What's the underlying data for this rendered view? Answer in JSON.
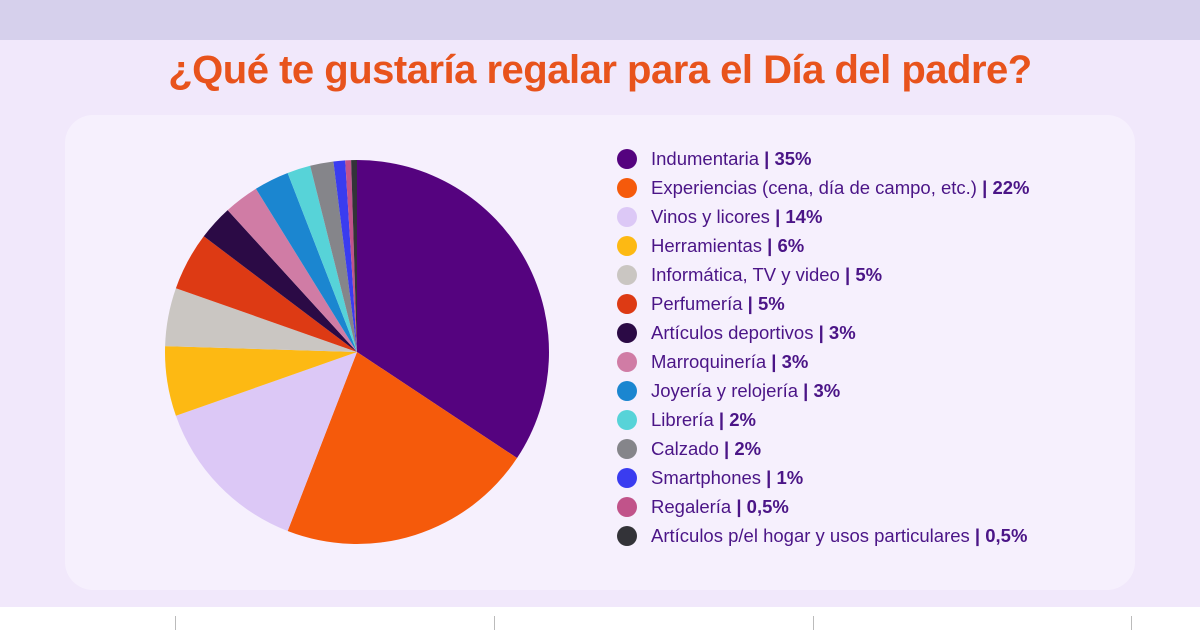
{
  "title": "¿Qué te gustaría regalar para el Día del padre?",
  "chart_data": {
    "type": "pie",
    "title": "¿Qué te gustaría regalar para el Día del padre?",
    "start": "top",
    "direction": "clockwise",
    "legend": "right",
    "slices": [
      {
        "label": "Indumentaria",
        "value": 35,
        "display": "35%",
        "color": "#55037f"
      },
      {
        "label": "Experiencias (cena, día de campo, etc.)",
        "value": 22,
        "display": "22%",
        "color": "#f55a0b"
      },
      {
        "label": "Vinos y licores",
        "value": 14,
        "display": "14%",
        "color": "#dcc8f6"
      },
      {
        "label": "Herramientas",
        "value": 6,
        "display": "6%",
        "color": "#fdb913"
      },
      {
        "label": "Informática, TV y video",
        "value": 5,
        "display": "5%",
        "color": "#cac6c2"
      },
      {
        "label": "Perfumería",
        "value": 5,
        "display": "5%",
        "color": "#dd3a14"
      },
      {
        "label": "Artículos deportivos",
        "value": 3,
        "display": "3%",
        "color": "#2b0a45"
      },
      {
        "label": "Marroquinería",
        "value": 3,
        "display": "3%",
        "color": "#d07ca5"
      },
      {
        "label": "Joyería y relojería",
        "value": 3,
        "display": "3%",
        "color": "#1b86d0"
      },
      {
        "label": "Librería",
        "value": 2,
        "display": "2%",
        "color": "#57d3d8"
      },
      {
        "label": "Calzado",
        "value": 2,
        "display": "2%",
        "color": "#85858a"
      },
      {
        "label": "Smartphones",
        "value": 1,
        "display": "1%",
        "color": "#3a3cf0"
      },
      {
        "label": "Regalería",
        "value": 0.5,
        "display": "0,5%",
        "color": "#c1538a"
      },
      {
        "label": "Artículos p/el hogar y usos particulares",
        "value": 0.5,
        "display": "0,5%",
        "color": "#333338"
      }
    ]
  }
}
